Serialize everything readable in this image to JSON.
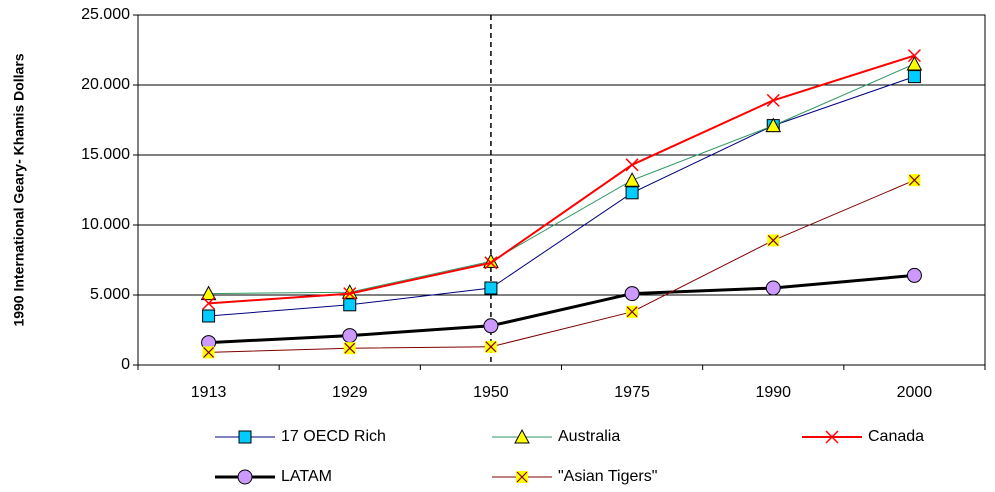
{
  "chart_data": {
    "type": "line",
    "y_label": "1990 International Geary- Khamis Dollars",
    "categories": [
      "1913",
      "1929",
      "1950",
      "1975",
      "1990",
      "2000"
    ],
    "ylim": [
      0,
      25000
    ],
    "yticks": [
      0,
      {
        "value": 5000,
        "label": "5.000"
      },
      {
        "value": 10000,
        "label": "10.000"
      },
      {
        "value": 15000,
        "label": "15.000"
      },
      {
        "value": 20000,
        "label": "20.000"
      },
      {
        "value": 25000,
        "label": "25.000"
      }
    ],
    "grid": true,
    "series": [
      {
        "name": "17 OECD Rich",
        "color": "#000080",
        "line_width": 1,
        "marker": "square",
        "marker_color": "#00ccff",
        "values": [
          3500,
          4300,
          5500,
          12300,
          17100,
          20600
        ]
      },
      {
        "name": "Australia",
        "color": "#339966",
        "line_width": 1,
        "marker": "triangle",
        "marker_color": "#ffff00",
        "values": [
          5100,
          5200,
          7400,
          13200,
          17100,
          21500
        ]
      },
      {
        "name": "Canada",
        "color": "#ff0000",
        "line_width": 2,
        "marker": "cross",
        "marker_color": "#ff0000",
        "values": [
          4400,
          5100,
          7300,
          14300,
          18900,
          22100
        ]
      },
      {
        "name": "LATAM",
        "color": "#000000",
        "line_width": 3,
        "marker": "circle",
        "marker_color": "#cc99ff",
        "values": [
          1600,
          2100,
          2800,
          5100,
          5500,
          6400
        ]
      },
      {
        "name": "\"Asian Tigers\"",
        "color": "#800000",
        "line_width": 1,
        "marker": "square-cross",
        "marker_color": "#ffff00",
        "values": [
          900,
          1200,
          1300,
          3800,
          8900,
          13200
        ]
      }
    ]
  }
}
